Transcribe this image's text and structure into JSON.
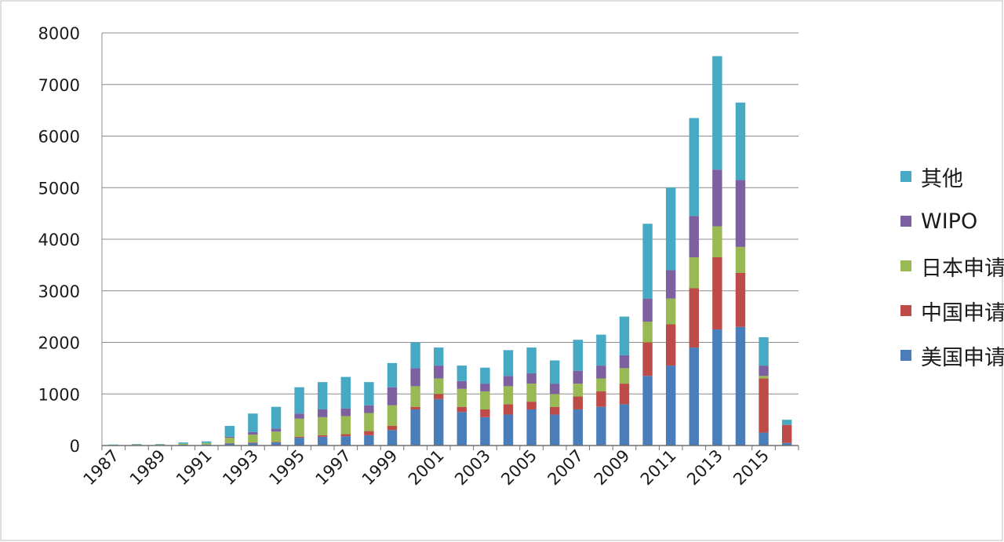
{
  "chart_data": {
    "type": "bar",
    "stacked": true,
    "title": "",
    "xlabel": "",
    "ylabel": "",
    "ylim": [
      0,
      8000
    ],
    "yticks": [
      0,
      1000,
      2000,
      3000,
      4000,
      5000,
      6000,
      7000,
      8000
    ],
    "grid": true,
    "legend_position": "right",
    "x_tick_labels": [
      "1987",
      "1989",
      "1991",
      "1993",
      "1995",
      "1997",
      "1999",
      "2001",
      "2003",
      "2005",
      "2007",
      "2009",
      "2011",
      "2013",
      "2015"
    ],
    "categories": [
      "1987",
      "1988",
      "1989",
      "1990",
      "1991",
      "1992",
      "1993",
      "1994",
      "1995",
      "1996",
      "1997",
      "1998",
      "1999",
      "2000",
      "2001",
      "2002",
      "2003",
      "2004",
      "2005",
      "2006",
      "2007",
      "2008",
      "2009",
      "2010",
      "2011",
      "2012",
      "2013",
      "2014",
      "2015",
      "2016"
    ],
    "series": [
      {
        "name": "美国申请",
        "color": "#4a7ebb",
        "values": [
          5,
          10,
          10,
          15,
          20,
          40,
          50,
          60,
          150,
          170,
          180,
          200,
          300,
          700,
          900,
          650,
          550,
          600,
          700,
          600,
          700,
          750,
          800,
          1350,
          1550,
          1900,
          2250,
          2300,
          250,
          50
        ]
      },
      {
        "name": "中国申请",
        "color": "#be4b48",
        "values": [
          0,
          0,
          0,
          0,
          0,
          10,
          10,
          10,
          20,
          30,
          40,
          80,
          80,
          50,
          100,
          100,
          150,
          200,
          150,
          150,
          250,
          300,
          400,
          650,
          800,
          1150,
          1400,
          1050,
          1050,
          350
        ]
      },
      {
        "name": "日本申请",
        "color": "#98b954",
        "values": [
          5,
          10,
          10,
          20,
          30,
          100,
          150,
          200,
          350,
          350,
          350,
          350,
          400,
          400,
          300,
          350,
          350,
          350,
          350,
          250,
          250,
          250,
          300,
          400,
          500,
          600,
          600,
          500,
          50,
          0
        ]
      },
      {
        "name": "WIPO",
        "color": "#7d60a0",
        "values": [
          0,
          0,
          0,
          0,
          0,
          20,
          50,
          60,
          100,
          150,
          150,
          150,
          350,
          350,
          250,
          150,
          150,
          200,
          200,
          200,
          250,
          250,
          250,
          450,
          550,
          800,
          1100,
          1300,
          200,
          0
        ]
      },
      {
        "name": "其他",
        "color": "#46aac5",
        "values": [
          10,
          10,
          10,
          25,
          30,
          210,
          360,
          420,
          510,
          530,
          610,
          450,
          470,
          500,
          350,
          300,
          310,
          500,
          500,
          450,
          600,
          600,
          750,
          1450,
          1600,
          1900,
          2200,
          1500,
          550,
          100
        ]
      }
    ]
  }
}
